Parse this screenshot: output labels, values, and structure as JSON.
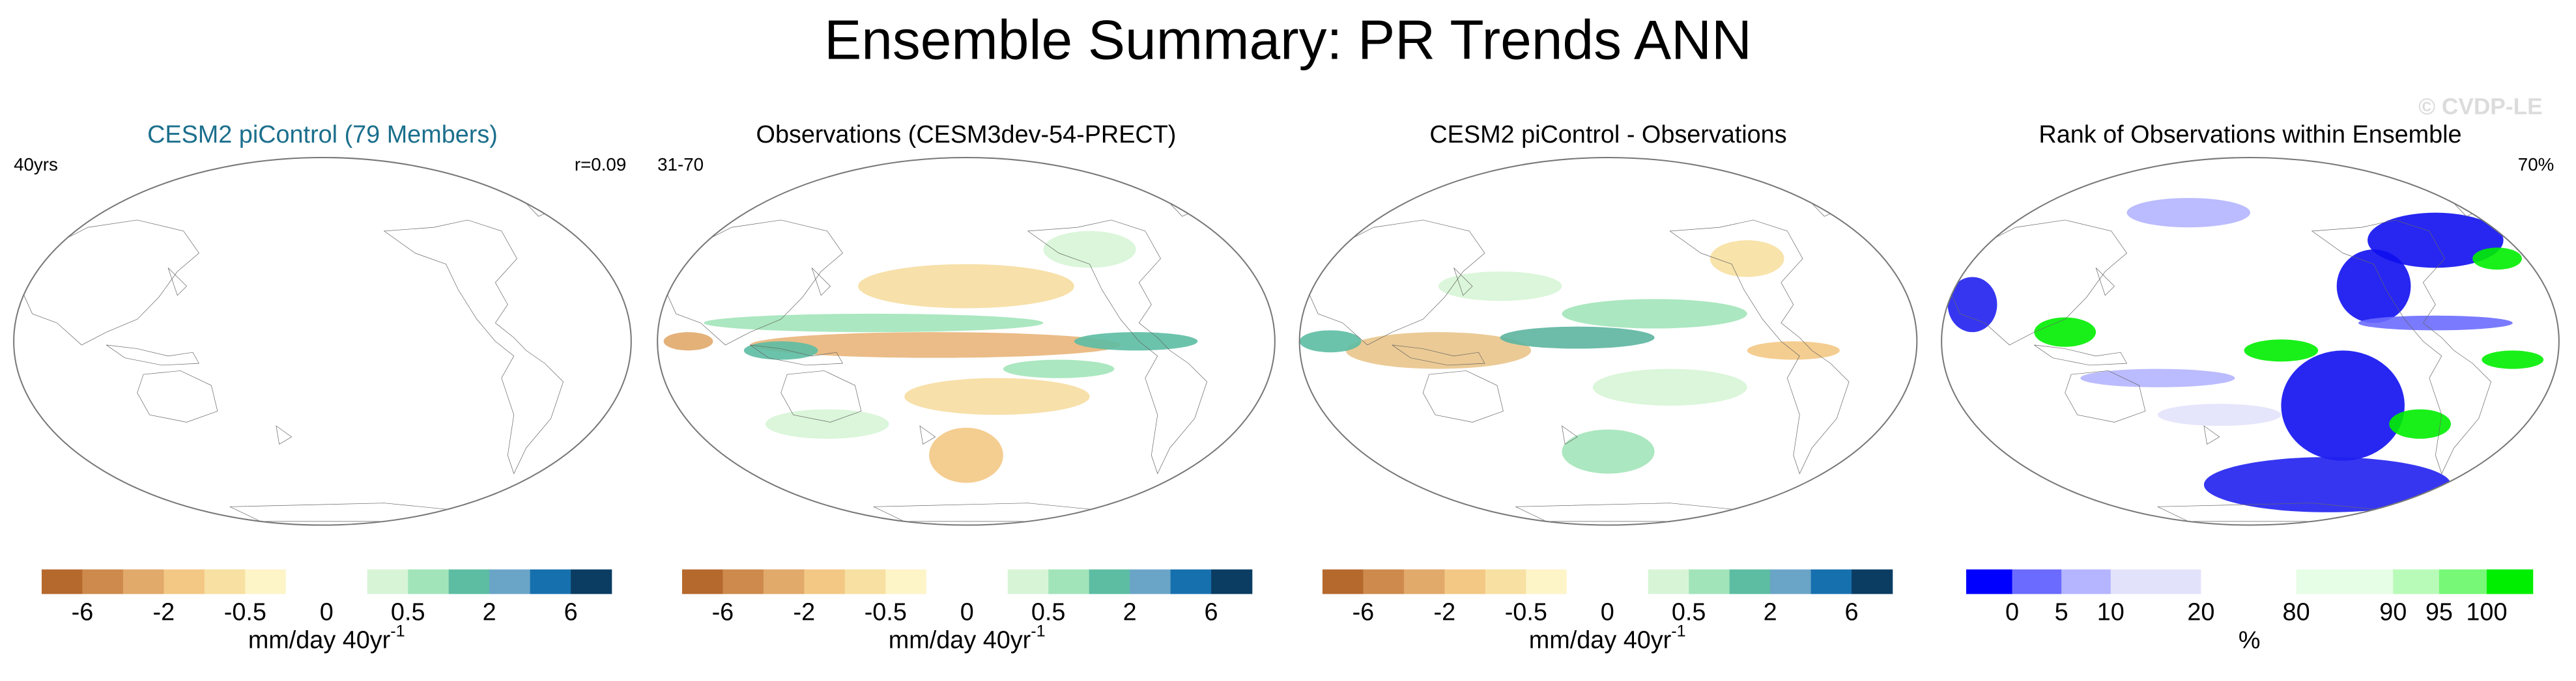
{
  "title": "Ensemble Summary: PR Trends ANN",
  "watermark": "© CVDP-LE",
  "panels": [
    {
      "title": "CESM2 piControl (79 Members)",
      "title_color": "#1b6f8c",
      "left_label": "40yrs",
      "right_label": "r=0.09",
      "colorbar": {
        "colors": [
          "#b5692d",
          "#cd8a4c",
          "#e1a96a",
          "#f3c884",
          "#f7e0a2",
          "#fdf4c8",
          "#ffffff",
          "#ffffff",
          "#d7f5d6",
          "#a2e4b9",
          "#5cbda3",
          "#6aa5c7",
          "#1770ae",
          "#0b3d63"
        ],
        "ticks": [
          -6,
          -2,
          -0.5,
          0,
          0.5,
          2,
          6
        ],
        "units": "mm/day 40yr",
        "units_exponent": "-1"
      }
    },
    {
      "title": "Observations (CESM3dev-54-PRECT)",
      "title_color": "#000000",
      "left_label": "31-70",
      "colorbar": {
        "colors": [
          "#b5692d",
          "#cd8a4c",
          "#e1a96a",
          "#f3c884",
          "#f7e0a2",
          "#fdf4c8",
          "#ffffff",
          "#ffffff",
          "#d7f5d6",
          "#a2e4b9",
          "#5cbda3",
          "#6aa5c7",
          "#1770ae",
          "#0b3d63"
        ],
        "ticks": [
          -6,
          -2,
          -0.5,
          0,
          0.5,
          2,
          6
        ],
        "units": "mm/day 40yr",
        "units_exponent": "-1"
      }
    },
    {
      "title": "CESM2 piControl - Observations",
      "title_color": "#000000",
      "colorbar": {
        "colors": [
          "#b5692d",
          "#cd8a4c",
          "#e1a96a",
          "#f3c884",
          "#f7e0a2",
          "#fdf4c8",
          "#ffffff",
          "#ffffff",
          "#d7f5d6",
          "#a2e4b9",
          "#5cbda3",
          "#6aa5c7",
          "#1770ae",
          "#0b3d63"
        ],
        "ticks": [
          -6,
          -2,
          -0.5,
          0,
          0.5,
          2,
          6
        ],
        "units": "mm/day 40yr",
        "units_exponent": "-1"
      }
    },
    {
      "title": "Rank of Observations within Ensemble",
      "title_color": "#000000",
      "right_label": "70%",
      "colorbar": {
        "colors": [
          "#0000ff",
          "#6b6bff",
          "#b4b4ff",
          "#e2e2fb",
          "#ffffff",
          "#e6fde6",
          "#b8fbb8",
          "#77f877",
          "#00ee00"
        ],
        "ticks": [
          0,
          5,
          10,
          20,
          80,
          90,
          95,
          100
        ],
        "units": "%"
      }
    }
  ]
}
